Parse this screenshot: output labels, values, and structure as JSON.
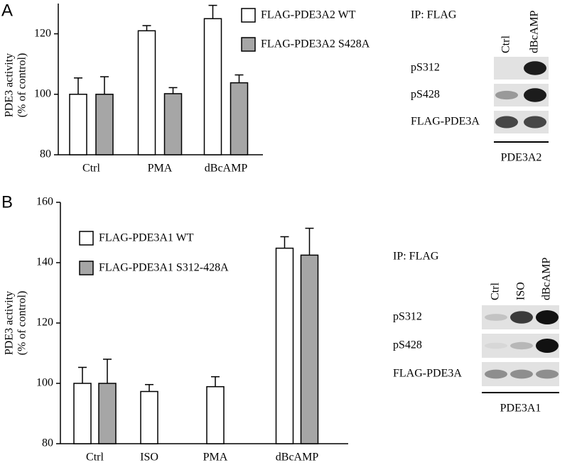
{
  "chart_data": [
    {
      "type": "bar",
      "panel": "A",
      "ylabel": [
        "PDE3 activity",
        "(% of control)"
      ],
      "categories": [
        "Ctrl",
        "PMA",
        "dBcAMP"
      ],
      "series": [
        {
          "name": "FLAG-PDE3A2 WT",
          "color": "#ffffff",
          "values": [
            100,
            121,
            125
          ],
          "errors": [
            5.4,
            1.7,
            4.4
          ]
        },
        {
          "name": "FLAG-PDE3A2 S428A",
          "color": "#a6a6a6",
          "values": [
            100,
            100.2,
            103.8
          ],
          "errors": [
            5.8,
            2,
            2.6
          ]
        }
      ],
      "ylim": [
        80,
        130
      ],
      "yticks": [
        80,
        100,
        120
      ],
      "blot": {
        "title": "IP: FLAG",
        "lanes": [
          "Ctrl",
          "dBcAMP"
        ],
        "rows": [
          "pS312",
          "pS428",
          "FLAG-PDE3A"
        ],
        "group": "PDE3A2"
      }
    },
    {
      "type": "bar",
      "panel": "B",
      "ylabel": [
        "PDE3 activity",
        "(% of control)"
      ],
      "categories": [
        "Ctrl",
        "ISO",
        "PMA",
        "dBcAMP"
      ],
      "series": [
        {
          "name": "FLAG-PDE3A1 WT",
          "color": "#ffffff",
          "values": [
            100,
            97.3,
            98.9,
            144.8
          ],
          "errors": [
            5.3,
            2.3,
            3.3,
            3.8
          ]
        },
        {
          "name": "FLAG-PDE3A1 S312-428A",
          "color": "#a6a6a6",
          "values": [
            100,
            null,
            null,
            142.5
          ],
          "errors": [
            8,
            null,
            null,
            8.9
          ]
        }
      ],
      "ylim": [
        80,
        160
      ],
      "yticks": [
        80,
        100,
        120,
        140,
        160
      ],
      "blot": {
        "title": "IP: FLAG",
        "lanes": [
          "Ctrl",
          "ISO",
          "dBcAMP"
        ],
        "rows": [
          "pS312",
          "pS428",
          "FLAG-PDE3A"
        ],
        "group": "PDE3A1"
      }
    }
  ]
}
